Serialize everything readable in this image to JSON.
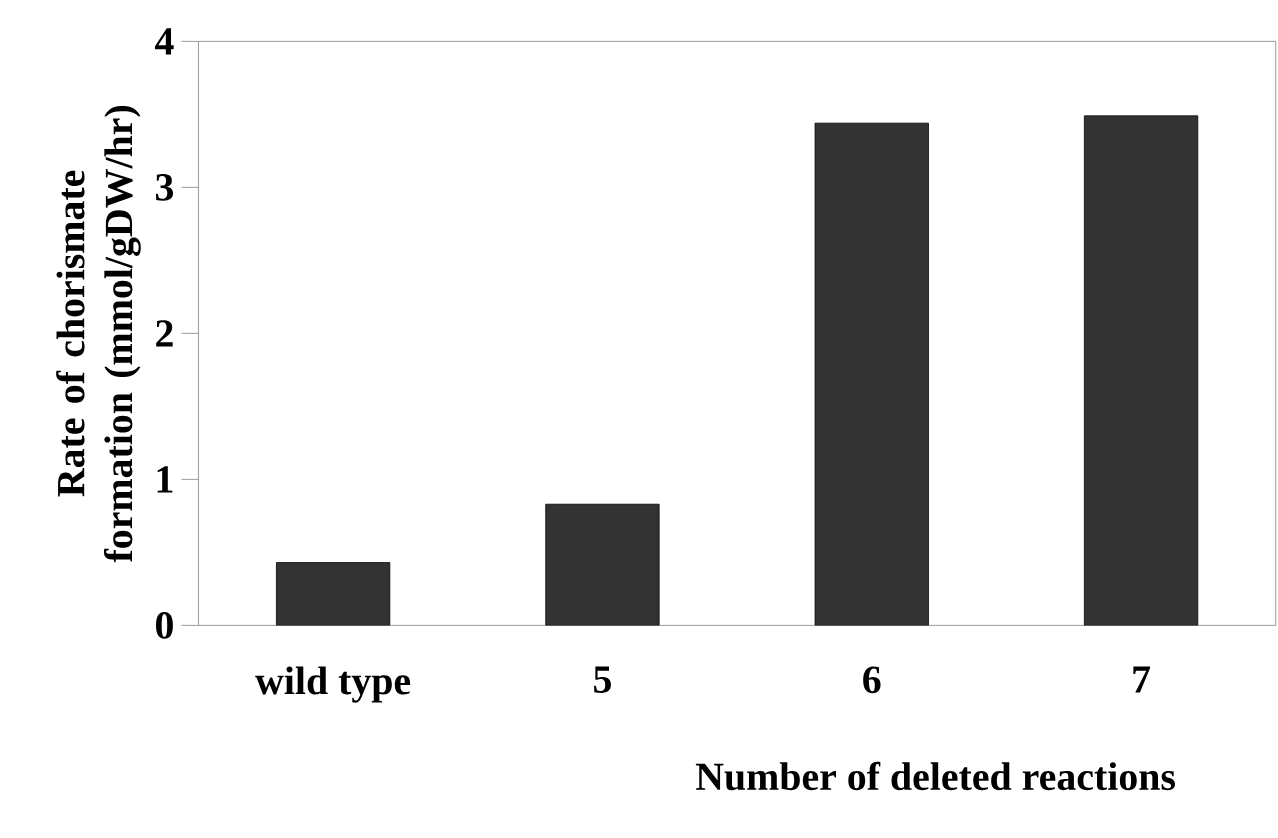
{
  "chart_data": {
    "type": "bar",
    "xlabel": "Number of deleted reactions",
    "ylabel": "Rate of chorismate formation (mmol/gDW/hr)",
    "categories": [
      "wild type",
      "5",
      "6",
      "7"
    ],
    "values": [
      0.43,
      0.83,
      3.44,
      3.49
    ],
    "color": "#333333",
    "ylim": [
      0,
      4
    ],
    "yticks": [
      0,
      1,
      2,
      3,
      4
    ],
    "grid": false
  }
}
